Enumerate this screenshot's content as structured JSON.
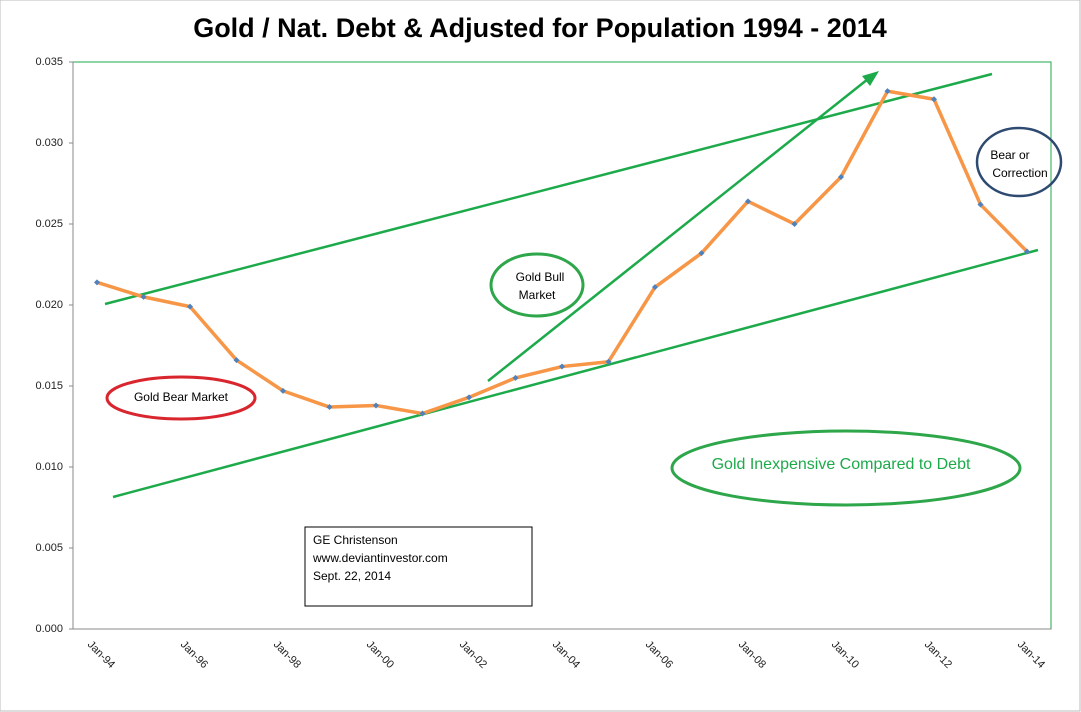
{
  "chart_data": {
    "type": "line",
    "title": "Gold / Nat. Debt & Adjusted for Population 1994 - 2014",
    "categories": [
      "Jan-94",
      null,
      "Jan-96",
      null,
      "Jan-98",
      null,
      "Jan-00",
      null,
      "Jan-02",
      null,
      "Jan-04",
      null,
      "Jan-06",
      null,
      "Jan-08",
      null,
      "Jan-10",
      null,
      "Jan-12",
      null,
      "Jan-14"
    ],
    "series": [
      {
        "color": "#f79646",
        "marker_color": "#4f81bd",
        "values": [
          0.0214,
          0.0205,
          0.0199,
          0.0166,
          0.0147,
          0.0137,
          0.0138,
          0.0133,
          0.0143,
          0.0155,
          0.0162,
          0.0165,
          0.0211,
          0.0232,
          0.0264,
          0.025,
          0.0279,
          0.0332,
          0.0327,
          0.0262,
          0.0233
        ]
      }
    ],
    "ylim": [
      0,
      0.035
    ],
    "yticks": [
      {
        "value": 0,
        "label": "0.000"
      },
      0.005,
      {
        "value": 0.01,
        "label": "0.010"
      },
      0.015,
      {
        "value": 0.02,
        "label": "0.020"
      },
      0.025,
      {
        "value": 0.03,
        "label": "0.030"
      },
      0.035
    ],
    "grid": false,
    "annotations": {
      "bear_market": "Gold Bear Market",
      "bull_market": [
        "Gold Bull",
        "Market"
      ],
      "correction": [
        "Bear or",
        "Correction"
      ],
      "inexpensive": "Gold Inexpensive Compared to Debt",
      "credit": [
        "GE Christenson",
        "www.deviantinvestor.com",
        "Sept. 22, 2014"
      ]
    }
  }
}
